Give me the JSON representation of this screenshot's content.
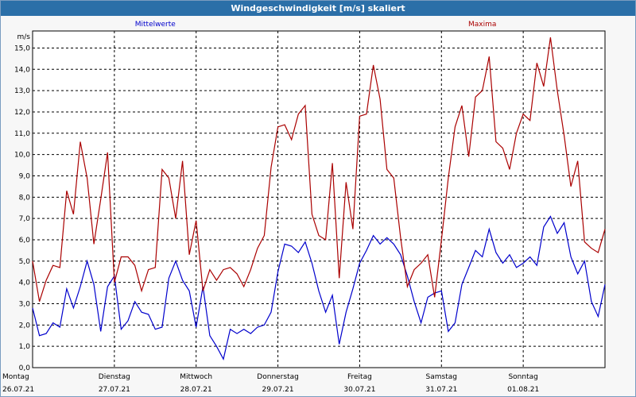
{
  "window": {
    "title": "Windgeschwindigkeit [m/s] skaliert"
  },
  "colors": {
    "mean": "#0000cc",
    "max": "#aa0000",
    "grid": "#000000"
  },
  "chart_data": {
    "type": "line",
    "title": "Windgeschwindigkeit [m/s] skaliert",
    "ylabel": "m/s",
    "ylim": [
      0,
      15.8
    ],
    "yticks": [
      "0,0",
      "1,0",
      "2,0",
      "3,0",
      "4,0",
      "5,0",
      "6,0",
      "7,0",
      "8,0",
      "9,0",
      "10,0",
      "11,0",
      "12,0",
      "13,0",
      "14,0",
      "15,0"
    ],
    "grid": true,
    "legend": {
      "mean": "Mittelwerte",
      "max": "Maxima"
    },
    "days": [
      {
        "name": "Montag",
        "date": "26.07.21"
      },
      {
        "name": "Dienstag",
        "date": "27.07.21"
      },
      {
        "name": "Mittwoch",
        "date": "28.07.21"
      },
      {
        "name": "Donnerstag",
        "date": "29.07.21"
      },
      {
        "name": "Freitag",
        "date": "30.07.21"
      },
      {
        "name": "Samstag",
        "date": "31.07.21"
      },
      {
        "name": "Sonntag",
        "date": "01.08.21"
      }
    ],
    "x_unit": "hours from 26.07.21 00:00",
    "series": [
      {
        "name": "Mittelwerte",
        "x": [
          0,
          2,
          4,
          6,
          8,
          10,
          12,
          14,
          16,
          18,
          20,
          22,
          24,
          26,
          28,
          30,
          32,
          34,
          36,
          38,
          40,
          42,
          44,
          46,
          48,
          50,
          52,
          54,
          56,
          58,
          60,
          62,
          64,
          66,
          68,
          70,
          72,
          74,
          76,
          78,
          80,
          82,
          84,
          86,
          88,
          90,
          92,
          94,
          96,
          98,
          100,
          102,
          104,
          106,
          108,
          110,
          112,
          114,
          116,
          118,
          120,
          122,
          124,
          126,
          128,
          130,
          132,
          134,
          136,
          138,
          140,
          142,
          144,
          146,
          148,
          150,
          152,
          154,
          156,
          158,
          160,
          162,
          164,
          166,
          168
        ],
        "values": [
          2.8,
          1.5,
          1.6,
          2.1,
          1.9,
          3.7,
          2.8,
          3.8,
          5.0,
          3.9,
          1.7,
          3.8,
          4.3,
          1.8,
          2.2,
          3.1,
          2.6,
          2.5,
          1.8,
          1.9,
          4.2,
          5.0,
          4.1,
          3.6,
          1.9,
          3.8,
          1.5,
          1.0,
          0.4,
          1.8,
          1.6,
          1.8,
          1.6,
          1.9,
          2.0,
          2.6,
          4.5,
          5.8,
          5.7,
          5.4,
          5.9,
          4.9,
          3.6,
          2.6,
          3.4,
          1.1,
          2.6,
          3.7,
          4.9,
          5.5,
          6.2,
          5.8,
          6.1,
          5.8,
          5.3,
          4.3,
          3.1,
          2.1,
          3.3,
          3.5,
          3.6,
          1.7,
          2.1,
          3.9,
          4.7,
          5.5,
          5.2,
          6.5,
          5.4,
          4.9,
          5.3,
          4.7,
          4.9,
          5.2,
          4.8,
          6.6,
          7.1,
          6.3,
          6.8,
          5.2,
          4.4,
          5.0,
          3.1,
          2.4,
          3.9
        ]
      },
      {
        "name": "Maxima",
        "x": [
          0,
          2,
          4,
          6,
          8,
          10,
          12,
          14,
          16,
          18,
          20,
          22,
          24,
          26,
          28,
          30,
          32,
          34,
          36,
          38,
          40,
          42,
          44,
          46,
          48,
          50,
          52,
          54,
          56,
          58,
          60,
          62,
          64,
          66,
          68,
          70,
          72,
          74,
          76,
          78,
          80,
          82,
          84,
          86,
          88,
          90,
          92,
          94,
          96,
          98,
          100,
          102,
          104,
          106,
          108,
          110,
          112,
          114,
          116,
          118,
          120,
          122,
          124,
          126,
          128,
          130,
          132,
          134,
          136,
          138,
          140,
          142,
          144,
          146,
          148,
          150,
          152,
          154,
          156,
          158,
          160,
          162,
          164,
          166,
          168
        ],
        "values": [
          5.0,
          3.1,
          4.1,
          4.8,
          4.7,
          8.3,
          7.2,
          10.6,
          8.9,
          5.8,
          7.9,
          10.1,
          4.0,
          5.2,
          5.2,
          4.8,
          3.6,
          4.6,
          4.7,
          9.3,
          8.9,
          7.0,
          9.7,
          5.3,
          6.9,
          3.6,
          4.6,
          4.1,
          4.6,
          4.7,
          4.4,
          3.8,
          4.6,
          5.6,
          6.2,
          9.4,
          11.3,
          11.4,
          10.7,
          11.9,
          12.3,
          7.2,
          6.2,
          6.0,
          9.6,
          4.2,
          8.7,
          6.5,
          11.8,
          11.9,
          14.2,
          12.6,
          9.3,
          8.9,
          6.1,
          3.8,
          4.6,
          4.9,
          5.3,
          3.3,
          6.0,
          8.9,
          11.3,
          12.3,
          9.9,
          12.7,
          13.0,
          14.6,
          10.6,
          10.3,
          9.3,
          11.0,
          11.9,
          11.6,
          14.3,
          13.2,
          15.5,
          13.0,
          10.9,
          8.5,
          9.7,
          5.9,
          5.6,
          5.4,
          6.5
        ]
      }
    ]
  }
}
